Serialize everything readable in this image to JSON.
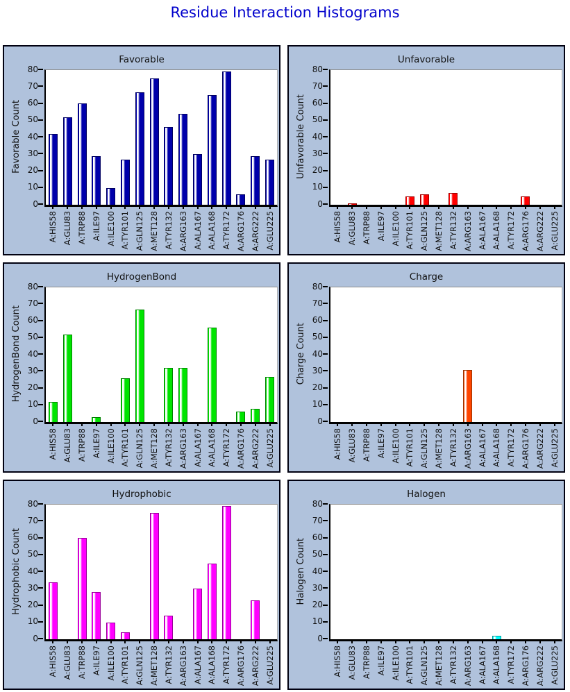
{
  "page_title": "Residue Interaction Histograms",
  "colors": {
    "page_bg": "#ffffff",
    "panel_bg": "#b0c2dc",
    "panel_border": "#000010",
    "title_color": "#0000cc",
    "plot_bg": "#ffffff",
    "axis_color": "#000000"
  },
  "categories": [
    "A:HIS58",
    "A:GLU83",
    "A:TRP88",
    "A:ILE97",
    "A:ILE100",
    "A:TYR101",
    "A:GLN125",
    "A:MET128",
    "A:TYR132",
    "A:ARG163",
    "A:ALA167",
    "A:ALA168",
    "A:TYR172",
    "A:ARG176",
    "A:ARG222",
    "A:GLU225"
  ],
  "y_ticks": [
    0,
    10,
    20,
    30,
    40,
    50,
    60,
    70,
    80
  ],
  "chart_data": [
    {
      "type": "bar",
      "title": "Favorable",
      "ylabel": "Favorable Count",
      "xlabel": "",
      "bar_color": "#0000aa",
      "edge_color": "#000060",
      "ylim": [
        0,
        80
      ],
      "grid": false,
      "values": [
        42,
        52,
        60,
        29,
        10,
        27,
        67,
        75,
        46,
        54,
        30,
        65,
        79,
        6,
        29,
        27
      ]
    },
    {
      "type": "bar",
      "title": "Unfavorable",
      "ylabel": "Unfavorable Count",
      "xlabel": "",
      "bar_color": "#ff0000",
      "edge_color": "#990000",
      "ylim": [
        0,
        80
      ],
      "grid": false,
      "values": [
        0,
        1,
        0,
        0,
        0,
        5,
        6,
        0,
        7,
        0,
        0,
        0,
        0,
        5,
        0,
        0
      ]
    },
    {
      "type": "bar",
      "title": "HydrogenBond",
      "ylabel": "HydrogenBond Count",
      "xlabel": "",
      "bar_color": "#00e400",
      "edge_color": "#008000",
      "ylim": [
        0,
        80
      ],
      "grid": false,
      "values": [
        12,
        52,
        0,
        3,
        0,
        26,
        67,
        0,
        32,
        32,
        0,
        56,
        0,
        6,
        8,
        27
      ]
    },
    {
      "type": "bar",
      "title": "Charge",
      "ylabel": "Charge Count",
      "xlabel": "",
      "bar_color": "#ff4500",
      "edge_color": "#993300",
      "ylim": [
        0,
        80
      ],
      "grid": false,
      "values": [
        0,
        0,
        0,
        0,
        0,
        0,
        0,
        0,
        0,
        31,
        0,
        0,
        0,
        0,
        0,
        0
      ]
    },
    {
      "type": "bar",
      "title": "Hydrophobic",
      "ylabel": "Hydrophobic Count",
      "xlabel": "",
      "bar_color": "#ff00ff",
      "edge_color": "#990099",
      "ylim": [
        0,
        80
      ],
      "grid": false,
      "values": [
        34,
        0,
        60,
        28,
        10,
        4,
        0,
        75,
        14,
        0,
        30,
        45,
        79,
        0,
        23,
        0
      ]
    },
    {
      "type": "bar",
      "title": "Halogen",
      "ylabel": "Halogen Count",
      "xlabel": "",
      "bar_color": "#00ffff",
      "edge_color": "#009999",
      "ylim": [
        0,
        80
      ],
      "grid": false,
      "values": [
        0,
        0,
        0,
        0,
        0,
        0,
        0,
        0,
        0,
        0,
        0,
        2,
        0,
        0,
        0,
        0
      ]
    }
  ]
}
